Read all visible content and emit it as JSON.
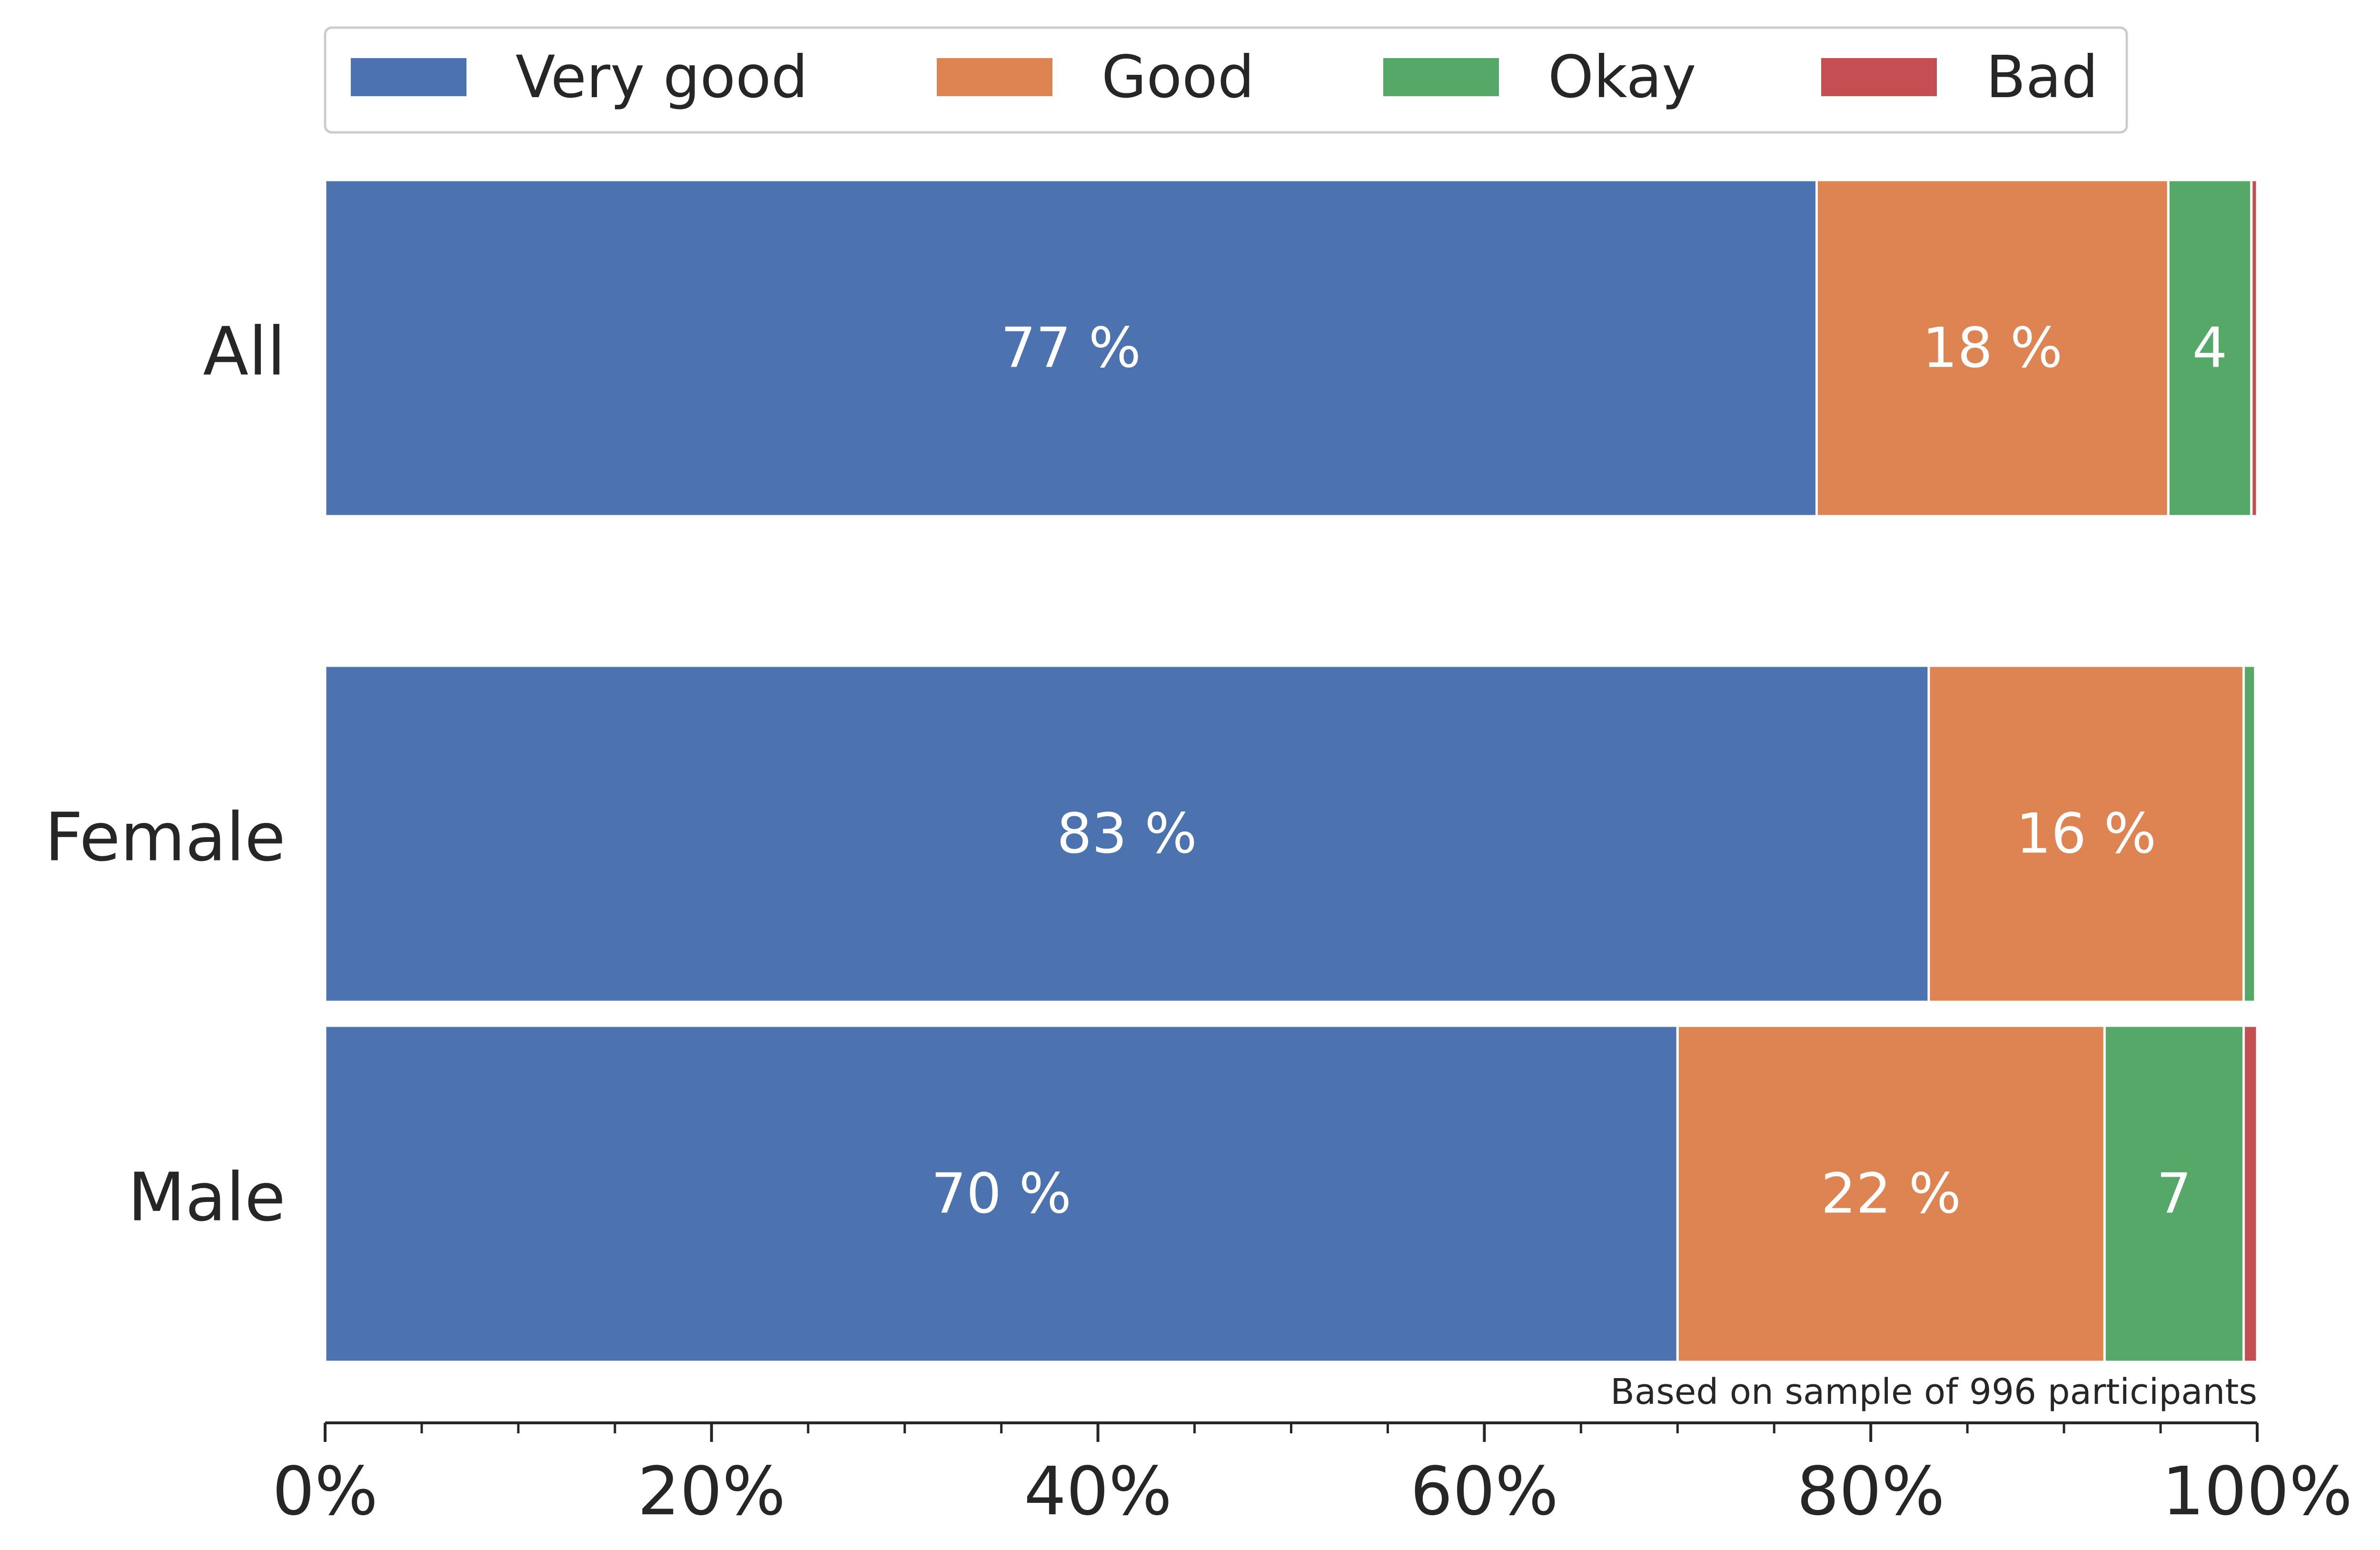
{
  "chart_data": {
    "type": "bar",
    "orientation": "horizontal",
    "stacked": true,
    "normalized_percent": true,
    "categories": [
      "All",
      "Female",
      "Male"
    ],
    "series": [
      {
        "name": "Very good",
        "color": "#4c72b0",
        "values": [
          77.2,
          83.0,
          70.0
        ],
        "labels": [
          "77 %",
          "83 %",
          "70 %"
        ]
      },
      {
        "name": "Good",
        "color": "#dd8452",
        "values": [
          18.2,
          16.3,
          22.1
        ],
        "labels": [
          "18 %",
          "16 %",
          "22 %"
        ]
      },
      {
        "name": "Okay",
        "color": "#55a868",
        "values": [
          4.3,
          0.6,
          7.2
        ],
        "labels": [
          "4",
          "",
          "7"
        ]
      },
      {
        "name": "Bad",
        "color": "#c44e52",
        "values": [
          0.3,
          0.1,
          0.7
        ],
        "labels": [
          "",
          "",
          ""
        ]
      }
    ],
    "xlim": [
      0,
      100
    ],
    "x_ticks": [
      "0%",
      "20%",
      "40%",
      "60%",
      "80%",
      "100%"
    ],
    "note": "Based on sample of 996 participants",
    "legend_position": "top",
    "grid": false
  }
}
